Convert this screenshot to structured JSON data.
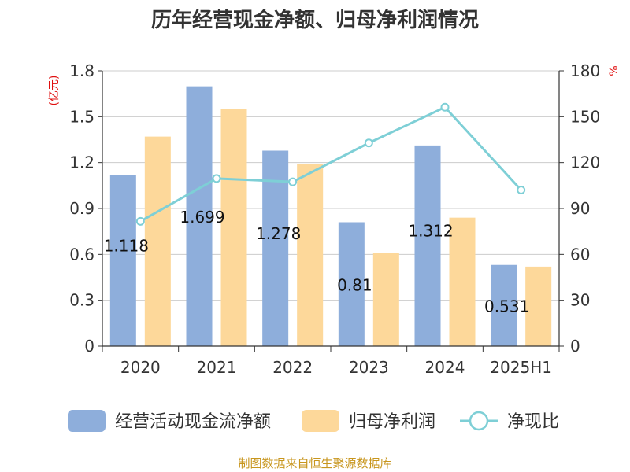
{
  "chart_data": {
    "type": "bar",
    "title": "历年经营现金净额、归母净利润情况",
    "categories": [
      "2020",
      "2021",
      "2022",
      "2023",
      "2024",
      "2025H1"
    ],
    "y_left": {
      "unit": "(亿元)",
      "ylim": [
        0,
        1.8
      ],
      "ticks": [
        "0",
        "0.3",
        "0.6",
        "0.9",
        "1.2",
        "1.5",
        "1.8"
      ]
    },
    "y_right": {
      "unit": "%",
      "ylim": [
        0,
        180
      ],
      "ticks": [
        "0",
        "30",
        "60",
        "90",
        "120",
        "150",
        "180"
      ]
    },
    "series": [
      {
        "name": "经营活动现金流净额",
        "kind": "bar",
        "axis": "left",
        "color": "#8eaedb",
        "values": [
          1.118,
          1.699,
          1.278,
          0.81,
          1.312,
          0.531
        ],
        "labels": [
          "1.118",
          "1.699",
          "1.278",
          "0.81",
          "1.312",
          "0.531"
        ]
      },
      {
        "name": "归母净利润",
        "kind": "bar",
        "axis": "left",
        "color": "#fdd89a",
        "values": [
          1.37,
          1.55,
          1.19,
          0.61,
          0.84,
          0.52
        ]
      },
      {
        "name": "净现比",
        "kind": "line",
        "axis": "right",
        "color": "#7ecfd6",
        "values": [
          81.6,
          109.6,
          107.4,
          132.8,
          156.2,
          102.1
        ]
      }
    ],
    "grid": true,
    "legend": "bottom"
  },
  "source": "制图数据来自恒生聚源数据库"
}
